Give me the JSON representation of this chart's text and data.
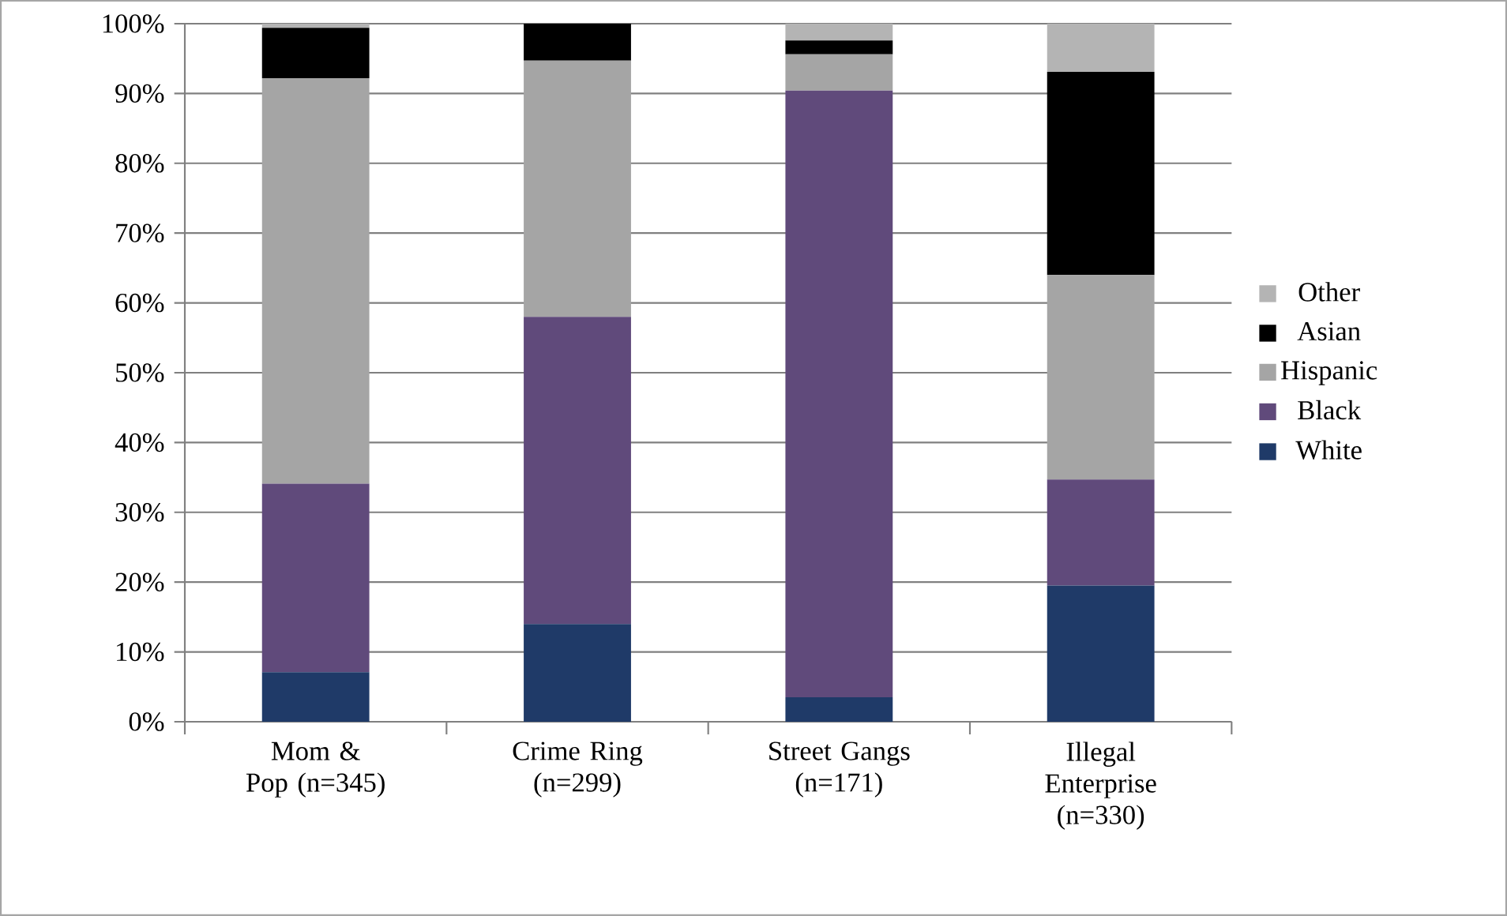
{
  "chart_data": {
    "type": "bar",
    "stacked": true,
    "categories": [
      "Mom & Pop (n=345)",
      "Crime Ring (n=299)",
      "Street Gangs (n=171)",
      "Illegal Enterprise (n=330)"
    ],
    "series": [
      {
        "name": "White",
        "color": "#1f3a68",
        "values": [
          7.1,
          14.0,
          3.5,
          19.5
        ]
      },
      {
        "name": "Black",
        "color": "#604a7b",
        "values": [
          27.0,
          44.0,
          86.9,
          15.2
        ]
      },
      {
        "name": "Hispanic",
        "color": "#a5a5a5",
        "values": [
          58.1,
          36.7,
          5.2,
          29.3
        ]
      },
      {
        "name": "Asian",
        "color": "#000000",
        "values": [
          7.2,
          5.3,
          2.0,
          29.1
        ]
      },
      {
        "name": "Other",
        "color": "#b4b4b4",
        "values": [
          0.6,
          0.0,
          2.4,
          6.9
        ]
      }
    ],
    "ylim": [
      0,
      100
    ],
    "yticks": [
      {
        "value": 0,
        "label": "0%"
      },
      {
        "value": 10,
        "label": "10%"
      },
      {
        "value": 20,
        "label": "20%"
      },
      {
        "value": 30,
        "label": "30%"
      },
      {
        "value": 40,
        "label": "40%"
      },
      {
        "value": 50,
        "label": "50%"
      },
      {
        "value": 60,
        "label": "60%"
      },
      {
        "value": 70,
        "label": "70%"
      },
      {
        "value": 80,
        "label": "80%"
      },
      {
        "value": 90,
        "label": "90%"
      },
      {
        "value": 100,
        "label": "100%"
      }
    ],
    "grid": "y",
    "legend": "right"
  }
}
